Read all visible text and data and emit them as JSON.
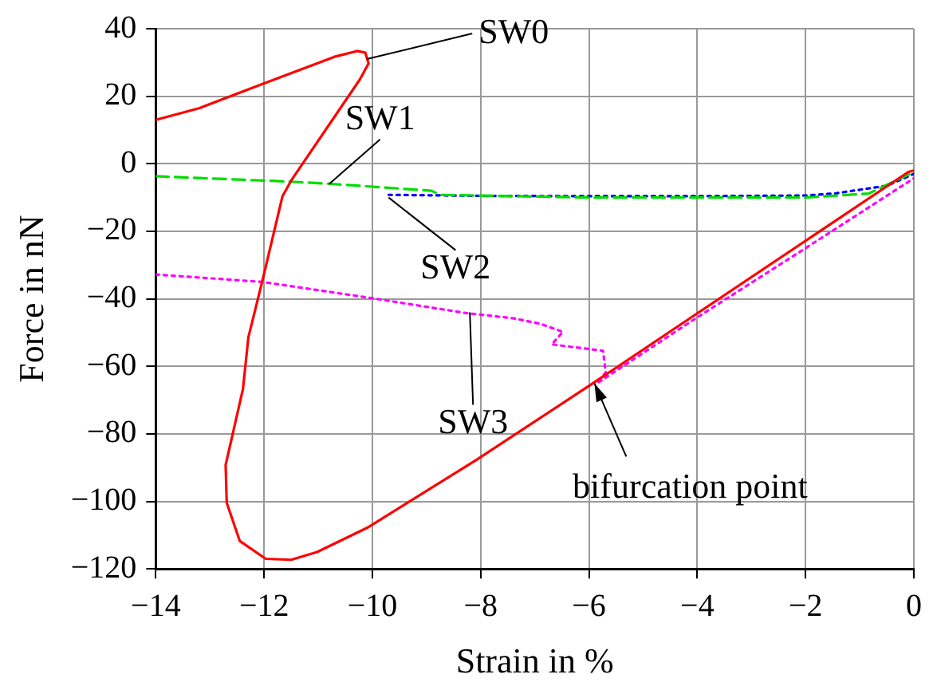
{
  "chart_data": {
    "type": "line",
    "xlabel": "Strain in %",
    "ylabel": "Force in nN",
    "xlim": [
      -14,
      0
    ],
    "xticks": [
      -14,
      -12,
      -10,
      -8,
      -6,
      -4,
      -2,
      0
    ],
    "ylim": [
      -120,
      40
    ],
    "yticks": [
      -120,
      -100,
      -80,
      -60,
      -40,
      -20,
      0,
      20,
      40
    ],
    "grid": true,
    "legend": false,
    "marker": "none",
    "series": [
      {
        "color": "#ff0000",
        "line_style": "solid",
        "x": [
          -14,
          -13.19,
          -11.97,
          -10.7,
          -10.28,
          -10.13,
          -10.07,
          -10.23,
          -11.5,
          -11.66,
          -12.03,
          -12.29,
          -12.39,
          -12.71,
          -12.69,
          -12.45,
          -11.97,
          -11.5,
          -11.02,
          -10.07,
          -8.07,
          -6.02,
          -0.1,
          0
        ],
        "values": [
          13,
          16.5,
          24,
          31.7,
          33.4,
          32.9,
          29.7,
          25,
          -5,
          -9.6,
          -34.6,
          -51.4,
          -66.7,
          -89.2,
          -100.4,
          -111.7,
          -117,
          -117.3,
          -115,
          -107.6,
          -87.6,
          -66,
          -2.4,
          -2
        ]
      },
      {
        "color": "#00dd00",
        "line_style": "dashed",
        "x": [
          -14,
          -11.5,
          -10.81,
          -8.91,
          -8.75,
          -6,
          -4,
          -2,
          -0.83,
          -0.1,
          0
        ],
        "values": [
          -3.7,
          -5.3,
          -5.9,
          -8,
          -9.2,
          -10,
          -10,
          -10,
          -8.8,
          -3.2,
          -2.5
        ]
      },
      {
        "color": "#0000ff",
        "line_style": "dotted",
        "x": [
          -9.7,
          -8,
          -6,
          -4,
          -2,
          -1.46,
          -0.5,
          0
        ],
        "values": [
          -9.2,
          -9.5,
          -9.6,
          -9.6,
          -9.4,
          -8.8,
          -6.5,
          -3
        ]
      },
      {
        "color": "#ff00ff",
        "line_style": "dotted",
        "x": [
          -14,
          -12.03,
          -9.97,
          -8.28,
          -7.38,
          -6.9,
          -6.48,
          -6.69,
          -5.74,
          -5.69,
          -5.85,
          -4,
          -2,
          0
        ],
        "values": [
          -32.8,
          -35,
          -39.9,
          -44.2,
          -45.8,
          -47.4,
          -49.8,
          -53.5,
          -55.4,
          -61.8,
          -65,
          -45.5,
          -25,
          -4.3
        ]
      }
    ],
    "annotations": [
      {
        "text": "SW0",
        "x": -10.1,
        "y": 31
      },
      {
        "text": "SW1",
        "x": -10.8,
        "y": -6
      },
      {
        "text": "SW2",
        "x": -9.7,
        "y": -10
      },
      {
        "text": "SW3",
        "x": -8.2,
        "y": -44
      },
      {
        "text": "bifurcation point",
        "x": -5.9,
        "y": -65
      }
    ]
  }
}
